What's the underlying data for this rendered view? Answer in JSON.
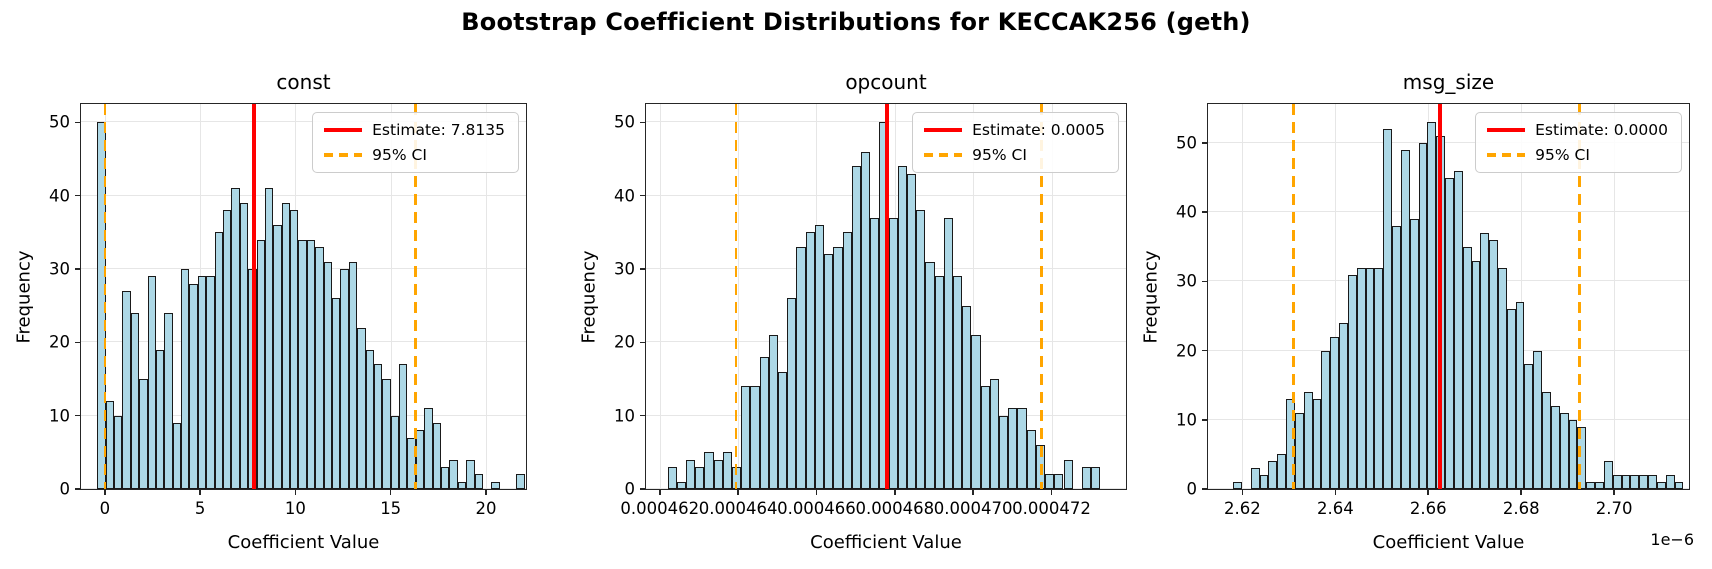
{
  "figure": {
    "suptitle": "Bootstrap Coefficient Distributions for KECCAK256 (geth)"
  },
  "colors": {
    "bar_fill": "#ADD8E6",
    "bar_edge": "#1a1a1a",
    "estimate_line": "#ff0000",
    "ci_line": "#FFA500",
    "grid": "#e6e6e6",
    "spine": "#262626",
    "background": "#ffffff"
  },
  "chart_data": [
    {
      "type": "bar",
      "subtype": "histogram",
      "title": "const",
      "xlabel": "Coefficient Value",
      "ylabel": "Frequency",
      "offset_label": "",
      "legend": {
        "estimate_label": "Estimate: 7.8135",
        "ci_label": "95% CI",
        "position": "upper right"
      },
      "estimate": 7.8135,
      "ci": [
        0.02,
        16.3
      ],
      "xlim": [
        -1.25,
        22.1
      ],
      "ylim": [
        0,
        52.5
      ],
      "grid": true,
      "xticks": [
        {
          "v": 0,
          "label": "0"
        },
        {
          "v": 5,
          "label": "5"
        },
        {
          "v": 10,
          "label": "10"
        },
        {
          "v": 15,
          "label": "15"
        },
        {
          "v": 20,
          "label": "20"
        }
      ],
      "yticks": [
        {
          "v": 0,
          "label": "0"
        },
        {
          "v": 10,
          "label": "10"
        },
        {
          "v": 20,
          "label": "20"
        },
        {
          "v": 30,
          "label": "30"
        },
        {
          "v": 40,
          "label": "40"
        },
        {
          "v": 50,
          "label": "50"
        }
      ],
      "bins": {
        "start": -0.4,
        "width": 0.44
      },
      "values": [
        50,
        12,
        10,
        27,
        24,
        15,
        29,
        19,
        24,
        9,
        30,
        28,
        29,
        29,
        35,
        38,
        41,
        39,
        30,
        34,
        41,
        36,
        39,
        38,
        34,
        34,
        33,
        31,
        26,
        30,
        31,
        22,
        19,
        17,
        15,
        10,
        17,
        7,
        8,
        11,
        9,
        3,
        4,
        1,
        4,
        2,
        0,
        1,
        0,
        0,
        2
      ]
    },
    {
      "type": "bar",
      "subtype": "histogram",
      "title": "opcount",
      "xlabel": "Coefficient Value",
      "ylabel": "Frequency",
      "offset_label": "",
      "legend": {
        "estimate_label": "Estimate: 0.0005",
        "ci_label": "95% CI",
        "position": "upper right"
      },
      "estimate": 467.8,
      "ci": [
        463.95,
        471.75
      ],
      "xlim": [
        461.65,
        473.9
      ],
      "ylim": [
        0,
        52.5
      ],
      "grid": true,
      "axis_unit": "1e-6 of coefficient (labels shown in full)",
      "xticks": [
        {
          "v": 462,
          "label": "0.000462"
        },
        {
          "v": 464,
          "label": "0.000464"
        },
        {
          "v": 466,
          "label": "0.000466"
        },
        {
          "v": 468,
          "label": "0.000468"
        },
        {
          "v": 470,
          "label": "0.000470"
        },
        {
          "v": 472,
          "label": "0.000472"
        }
      ],
      "yticks": [
        {
          "v": 0,
          "label": "0"
        },
        {
          "v": 10,
          "label": "10"
        },
        {
          "v": 20,
          "label": "20"
        },
        {
          "v": 30,
          "label": "30"
        },
        {
          "v": 40,
          "label": "40"
        },
        {
          "v": 50,
          "label": "50"
        }
      ],
      "bins": {
        "start": 462.2,
        "width": 0.235
      },
      "values": [
        3,
        1,
        4,
        3,
        5,
        4,
        5,
        3,
        14,
        14,
        18,
        21,
        16,
        26,
        33,
        35,
        36,
        32,
        33,
        35,
        44,
        46,
        37,
        50,
        37,
        44,
        43,
        38,
        31,
        29,
        37,
        29,
        25,
        21,
        14,
        15,
        10,
        11,
        11,
        8,
        6,
        2,
        2,
        4,
        0,
        3,
        3
      ]
    },
    {
      "type": "bar",
      "subtype": "histogram",
      "title": "msg_size",
      "xlabel": "Coefficient Value",
      "ylabel": "Frequency",
      "offset_label": "1e−6",
      "legend": {
        "estimate_label": "Estimate: 0.0000",
        "ci_label": "95% CI",
        "position": "upper right"
      },
      "estimate": 2.6625,
      "ci": [
        2.631,
        2.6925
      ],
      "xlim": [
        2.6126,
        2.7161
      ],
      "ylim": [
        0,
        55.65
      ],
      "grid": true,
      "axis_unit": "1e-6",
      "xticks": [
        {
          "v": 2.62,
          "label": "2.62"
        },
        {
          "v": 2.64,
          "label": "2.64"
        },
        {
          "v": 2.66,
          "label": "2.66"
        },
        {
          "v": 2.68,
          "label": "2.68"
        },
        {
          "v": 2.7,
          "label": "2.70"
        }
      ],
      "yticks": [
        {
          "v": 0,
          "label": "0"
        },
        {
          "v": 10,
          "label": "10"
        },
        {
          "v": 20,
          "label": "20"
        },
        {
          "v": 30,
          "label": "30"
        },
        {
          "v": 40,
          "label": "40"
        },
        {
          "v": 50,
          "label": "50"
        }
      ],
      "bins": {
        "start": 2.618,
        "width": 0.0019
      },
      "values": [
        1,
        0,
        3,
        2,
        4,
        5,
        13,
        11,
        14,
        13,
        20,
        22,
        24,
        31,
        32,
        32,
        32,
        52,
        38,
        49,
        39,
        50,
        53,
        51,
        45,
        46,
        35,
        33,
        37,
        36,
        32,
        26,
        27,
        18,
        20,
        14,
        12,
        11,
        10,
        9,
        1,
        1,
        4,
        2,
        2,
        2,
        2,
        2,
        1,
        2,
        1
      ]
    }
  ]
}
